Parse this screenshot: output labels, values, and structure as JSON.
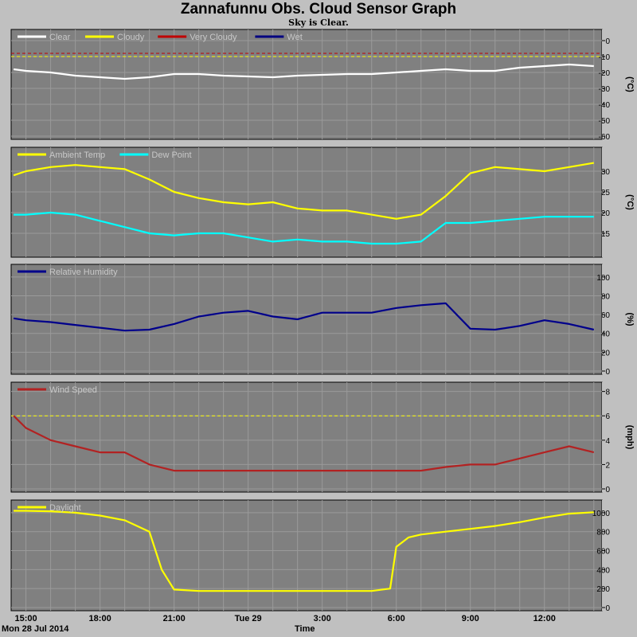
{
  "title": "Zannafunnu Obs. Cloud Sensor Graph",
  "subtitle": "Sky is Clear.",
  "footer": {
    "date": "Mon 28 Jul 2014",
    "xlabel": "Time"
  },
  "colors": {
    "plot_bg": "#808080",
    "page_bg": "#c0c0c0",
    "grid": "#9a9a9a",
    "white": "#ffffff",
    "yellow": "#ffff00",
    "red": "#c00000",
    "blue": "#000080",
    "cyan": "#00ffff",
    "darkblue": "#00008b",
    "windred": "#b22222"
  },
  "chart_data": [
    {
      "type": "line",
      "x": [
        "14:30",
        "15:00",
        "16:00",
        "17:00",
        "18:00",
        "19:00",
        "20:00",
        "21:00",
        "22:00",
        "23:00",
        "00:00",
        "01:00",
        "02:00",
        "03:00",
        "04:00",
        "05:00",
        "06:00",
        "07:00",
        "08:00",
        "09:00",
        "10:00",
        "11:00",
        "12:00",
        "13:00",
        "14:00"
      ],
      "xticks": [
        "15:00",
        "18:00",
        "21:00",
        "Tue 29",
        "3:00",
        "6:00",
        "9:00",
        "12:00"
      ],
      "ylabel": "(°C)",
      "ylim": [
        -60,
        5
      ],
      "yticks": [
        0,
        -10,
        -20,
        -30,
        -40,
        -50,
        -60
      ],
      "legend": [
        {
          "name": "Clear",
          "color": "#ffffff"
        },
        {
          "name": "Cloudy",
          "color": "#ffff00"
        },
        {
          "name": "Very Cloudy",
          "color": "#c00000"
        },
        {
          "name": "Wet",
          "color": "#000080"
        }
      ],
      "thresholds": [
        {
          "value": -8,
          "color": "#c00000"
        },
        {
          "value": -10,
          "color": "#ffff00"
        }
      ],
      "series": [
        {
          "name": "Clear",
          "color": "#ffffff",
          "values": [
            -18,
            -19,
            -20,
            -22,
            -23,
            -24,
            -23,
            -21,
            -21,
            -22,
            -22.5,
            -23,
            -22,
            -21.5,
            -21,
            -21,
            -20,
            -19,
            -18,
            -19,
            -19,
            -17,
            -16,
            -15,
            -16
          ]
        }
      ]
    },
    {
      "type": "line",
      "x": [
        "14:30",
        "15:00",
        "16:00",
        "17:00",
        "18:00",
        "19:00",
        "20:00",
        "21:00",
        "22:00",
        "23:00",
        "00:00",
        "01:00",
        "02:00",
        "03:00",
        "04:00",
        "05:00",
        "06:00",
        "07:00",
        "08:00",
        "09:00",
        "10:00",
        "11:00",
        "12:00",
        "13:00",
        "14:00"
      ],
      "xticks": [
        "15:00",
        "18:00",
        "21:00",
        "Tue 29",
        "3:00",
        "6:00",
        "9:00",
        "12:00"
      ],
      "ylabel": "(°C)",
      "ylim": [
        10,
        35
      ],
      "yticks": [
        30,
        25,
        20,
        15
      ],
      "legend": [
        {
          "name": "Ambient Temp",
          "color": "#ffff00"
        },
        {
          "name": "Dew Point",
          "color": "#00ffff"
        }
      ],
      "series": [
        {
          "name": "Ambient Temp",
          "color": "#ffff00",
          "values": [
            29,
            30,
            31,
            31.5,
            31,
            30.5,
            28,
            25,
            23.5,
            22.5,
            22,
            22.5,
            21,
            20.5,
            20.5,
            19.5,
            18.5,
            19.5,
            24,
            29.5,
            31,
            30.5,
            30,
            31,
            32
          ]
        },
        {
          "name": "Dew Point",
          "color": "#00ffff",
          "values": [
            19.5,
            19.5,
            20,
            19.5,
            18,
            16.5,
            15,
            14.5,
            15,
            15,
            14,
            13,
            13.5,
            13,
            13,
            12.5,
            12.5,
            13,
            17.5,
            17.5,
            18,
            18.5,
            19,
            19,
            19
          ]
        }
      ]
    },
    {
      "type": "line",
      "x": [
        "14:30",
        "15:00",
        "16:00",
        "17:00",
        "18:00",
        "19:00",
        "20:00",
        "21:00",
        "22:00",
        "23:00",
        "00:00",
        "01:00",
        "02:00",
        "03:00",
        "04:00",
        "05:00",
        "06:00",
        "07:00",
        "08:00",
        "09:00",
        "10:00",
        "11:00",
        "12:00",
        "13:00",
        "14:00"
      ],
      "xticks": [
        "15:00",
        "18:00",
        "21:00",
        "Tue 29",
        "3:00",
        "6:00",
        "9:00",
        "12:00"
      ],
      "ylabel": "(%)",
      "ylim": [
        0,
        110
      ],
      "yticks": [
        100,
        80,
        60,
        40,
        20,
        0
      ],
      "legend": [
        {
          "name": "Relative Humidity",
          "color": "#00008b"
        }
      ],
      "series": [
        {
          "name": "Relative Humidity",
          "color": "#00008b",
          "values": [
            56,
            54,
            52,
            49,
            46,
            43,
            44,
            50,
            58,
            62,
            64,
            58,
            55,
            62,
            62,
            62,
            67,
            70,
            72,
            45,
            44,
            48,
            54,
            50,
            44
          ]
        }
      ]
    },
    {
      "type": "line",
      "x": [
        "14:30",
        "15:00",
        "16:00",
        "17:00",
        "18:00",
        "19:00",
        "20:00",
        "21:00",
        "22:00",
        "23:00",
        "00:00",
        "01:00",
        "02:00",
        "03:00",
        "04:00",
        "05:00",
        "06:00",
        "07:00",
        "08:00",
        "09:00",
        "10:00",
        "11:00",
        "12:00",
        "13:00",
        "14:00"
      ],
      "xticks": [
        "15:00",
        "18:00",
        "21:00",
        "Tue 29",
        "3:00",
        "6:00",
        "9:00",
        "12:00"
      ],
      "ylabel": "(mph)",
      "ylim": [
        0,
        8.5
      ],
      "yticks": [
        8,
        6,
        4,
        2,
        0
      ],
      "legend": [
        {
          "name": "Wind Speed",
          "color": "#b22222"
        }
      ],
      "thresholds": [
        {
          "value": 6,
          "color": "#ffff00"
        }
      ],
      "series": [
        {
          "name": "Wind Speed",
          "color": "#b22222",
          "values": [
            6,
            5,
            4,
            3.5,
            3,
            3,
            2,
            1.5,
            1.5,
            1.5,
            1.5,
            1.5,
            1.5,
            1.5,
            1.5,
            1.5,
            1.5,
            1.5,
            1.8,
            2,
            2,
            2.5,
            3,
            3.5,
            3
          ]
        }
      ]
    },
    {
      "type": "line",
      "x": [
        "14:30",
        "15:00",
        "16:00",
        "17:00",
        "18:00",
        "19:00",
        "20:00",
        "20:30",
        "21:00",
        "22:00",
        "23:00",
        "00:00",
        "01:00",
        "02:00",
        "03:00",
        "04:00",
        "05:00",
        "05:45",
        "06:00",
        "06:30",
        "07:00",
        "08:00",
        "09:00",
        "10:00",
        "11:00",
        "12:00",
        "13:00",
        "14:00"
      ],
      "xticks": [
        "15:00",
        "18:00",
        "21:00",
        "Tue 29",
        "3:00",
        "6:00",
        "9:00",
        "12:00"
      ],
      "ylabel": "",
      "ylim": [
        0,
        1100
      ],
      "yticks": [
        1000,
        800,
        600,
        400,
        200,
        0
      ],
      "legend": [
        {
          "name": "Daylight",
          "color": "#ffff00"
        }
      ],
      "series": [
        {
          "name": "Daylight",
          "color": "#ffff00",
          "values": [
            1020,
            1020,
            1015,
            1000,
            970,
            920,
            800,
            400,
            190,
            175,
            175,
            175,
            175,
            175,
            175,
            175,
            175,
            200,
            640,
            740,
            770,
            800,
            830,
            860,
            900,
            950,
            990,
            1005
          ]
        }
      ]
    }
  ]
}
